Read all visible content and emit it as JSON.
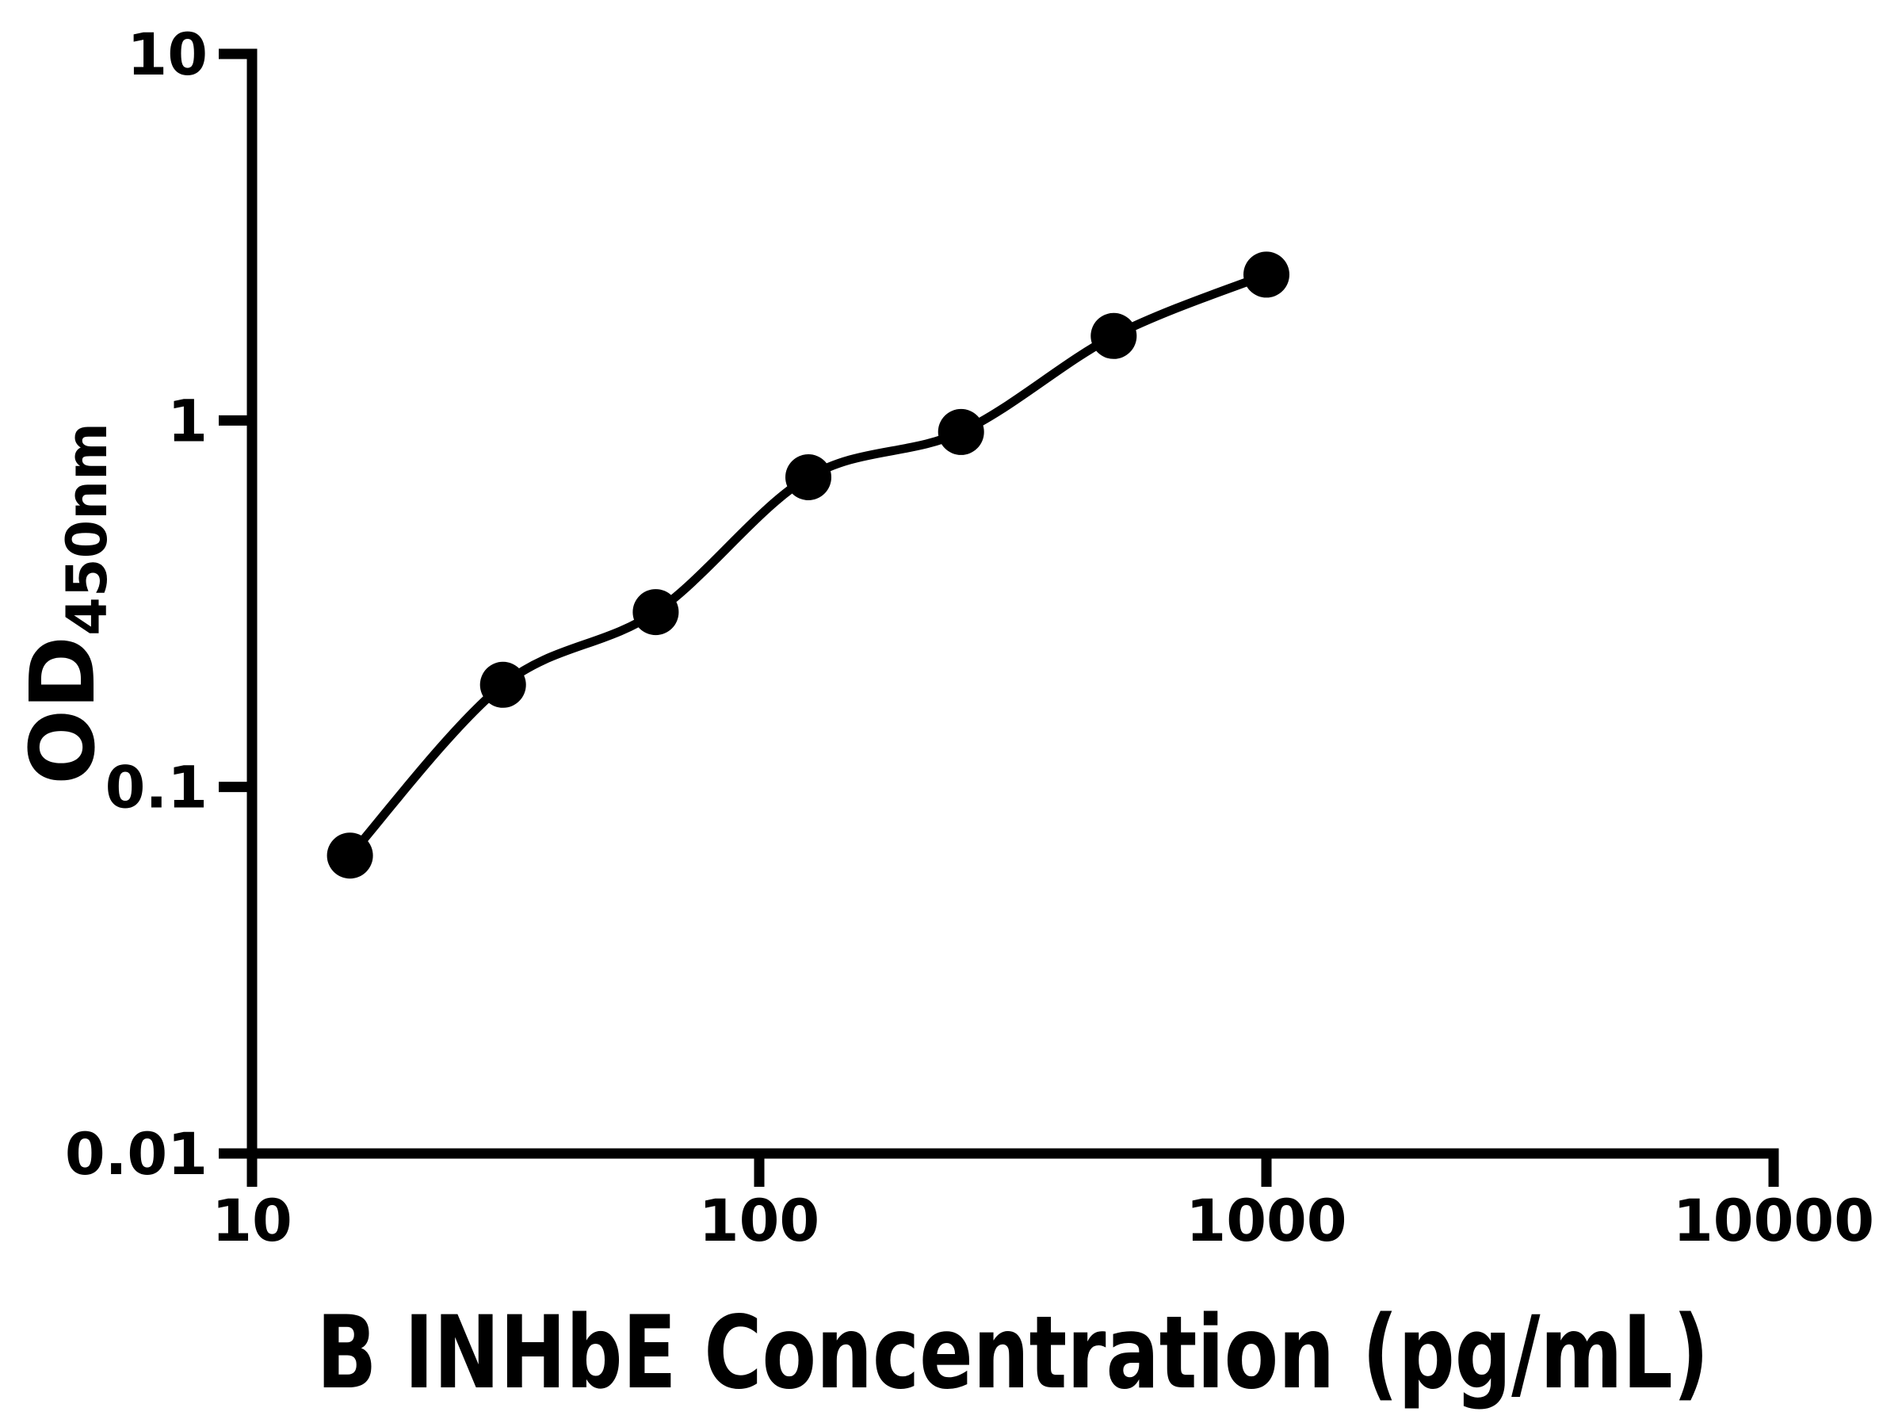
{
  "page": {
    "background_color": "#ffffff",
    "foreground_color": "#000000"
  },
  "chart_data": {
    "type": "scatter",
    "subtype": "ELISA standard curve, points with fitted line",
    "title": "",
    "xlabel": "B INHbE Concentration (pg/mL)",
    "ylabel_main": "OD",
    "ylabel_subscript": "450nm",
    "xscale": "log",
    "yscale": "log",
    "xlim": [
      10,
      10000
    ],
    "ylim": [
      0.01,
      10
    ],
    "grid": false,
    "legend_position": "none",
    "x_ticks": {
      "values": [
        10,
        100,
        1000,
        10000
      ],
      "labels": [
        "10",
        "100",
        "1000",
        "10000"
      ]
    },
    "y_ticks": {
      "values": [
        0.01,
        0.1,
        1,
        10
      ],
      "labels": [
        "0.01",
        "0.1",
        "1",
        "10"
      ]
    },
    "series": [
      {
        "name": "standard-curve",
        "marker": "filled-circle",
        "marker_color": "#000000",
        "line_color": "#000000",
        "fit_line": true,
        "x": [
          15.6,
          31.25,
          62.5,
          125,
          250,
          500,
          1000
        ],
        "y": [
          0.065,
          0.19,
          0.3,
          0.7,
          0.93,
          1.7,
          2.5
        ]
      }
    ]
  }
}
